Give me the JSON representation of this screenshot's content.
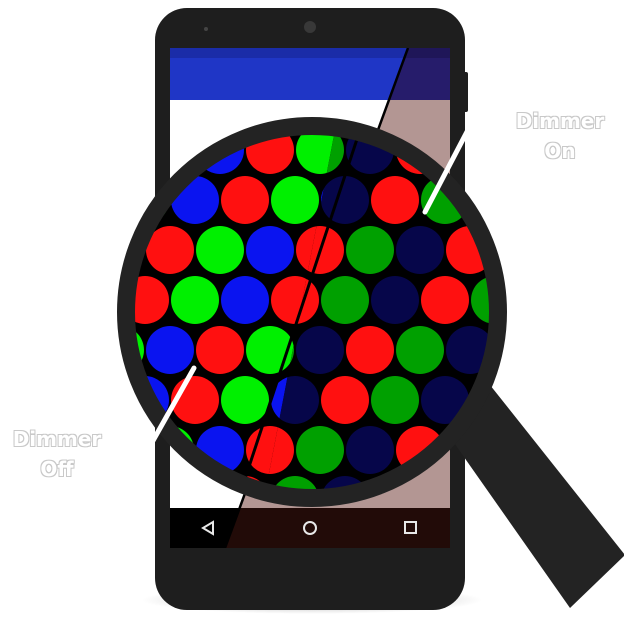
{
  "labels": {
    "dimmer_on_line1": "Dimmer",
    "dimmer_on_line2": "On",
    "dimmer_off_line1": "Dimmer",
    "dimmer_off_line2": "Off"
  },
  "navigation": {
    "back_icon": "triangle-back-icon",
    "home_icon": "circle-home-icon",
    "recents_icon": "square-recents-icon"
  },
  "colors": {
    "phone_body": "#1e1e1e",
    "screen_bar_left": "#1f36c6",
    "screen_bar_right": "#261c6b",
    "screen_content_left": "#ffffff",
    "screen_content_right": "#b39693",
    "navbar_left": "#000000",
    "navbar_right": "#220b08",
    "magnifier_frame": "#232323",
    "pixel_red_bright": "#ff1010",
    "pixel_green_bright": "#00f000",
    "pixel_blue_bright": "#0a14f0",
    "pixel_red_dim": "#ff1010",
    "pixel_green_dim": "#00a000",
    "pixel_blue_dim": "#06064a"
  }
}
